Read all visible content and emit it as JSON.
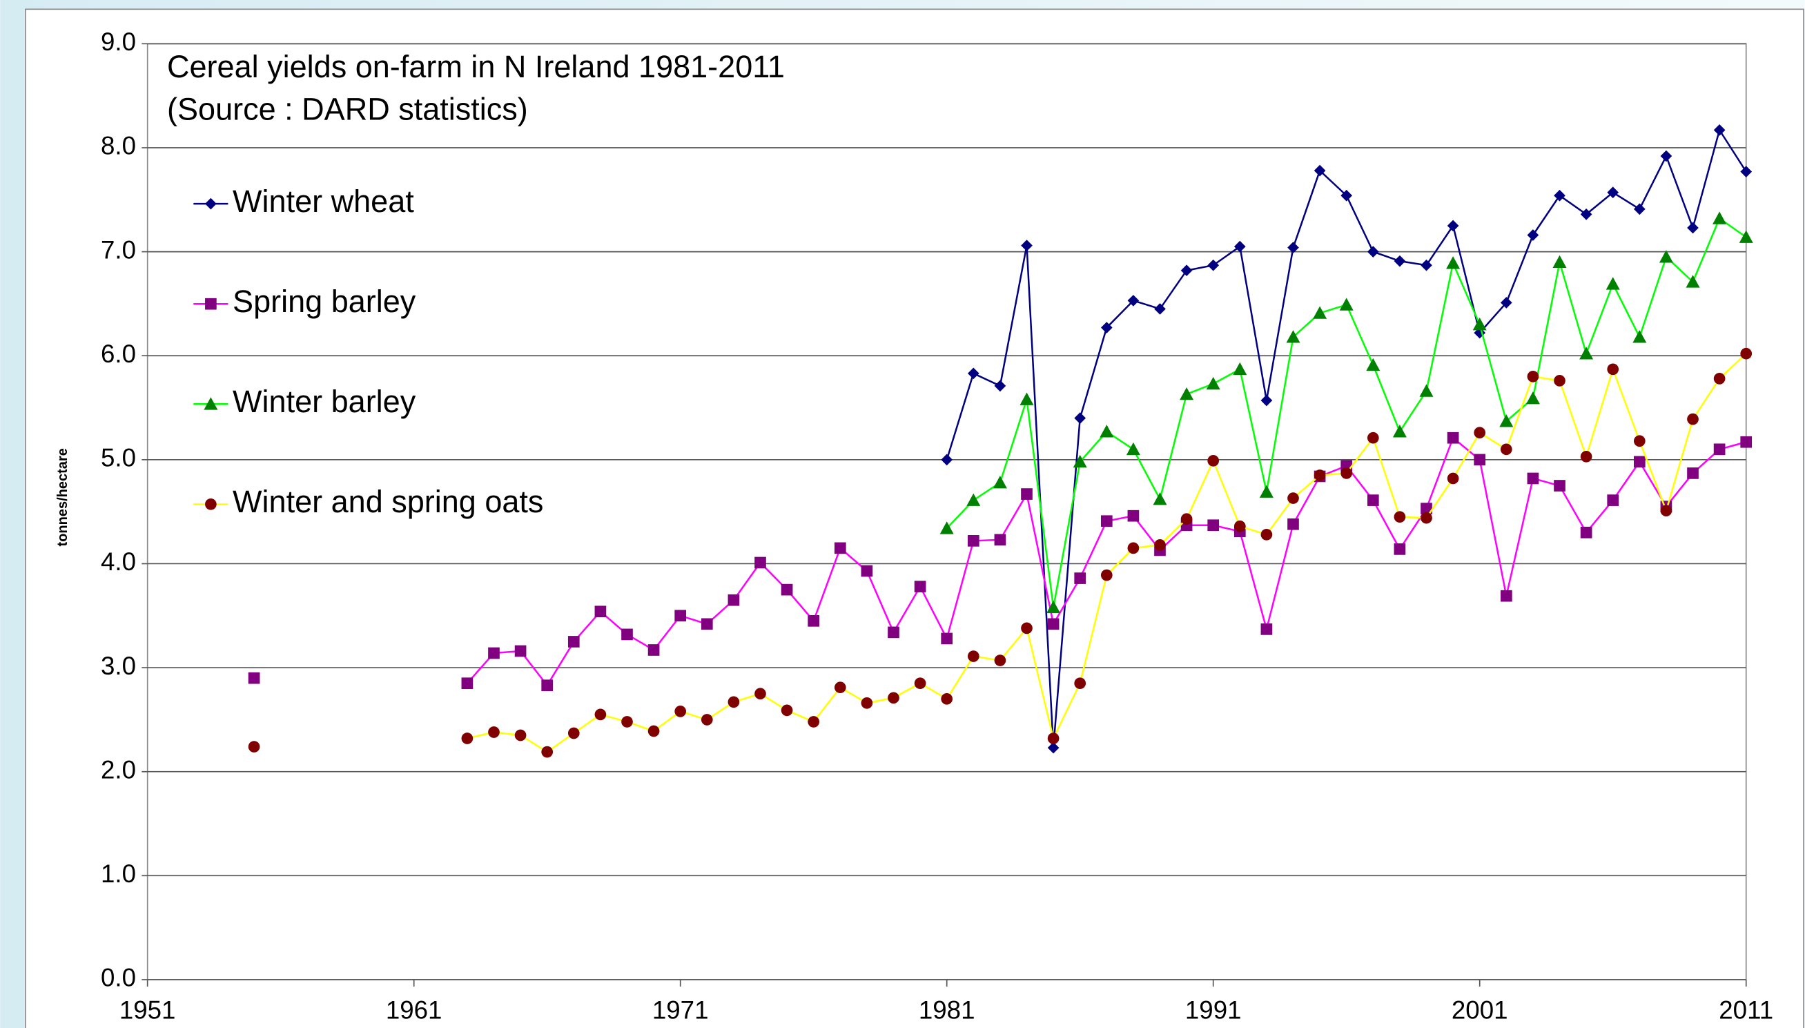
{
  "chart_data": {
    "type": "line",
    "title": "Cereal yields on-farm in N Ireland 1981-2011",
    "subtitle": "(Source : DARD statistics)",
    "y_label": "tonnes/hectare",
    "x": [
      1955,
      1956,
      1957,
      1958,
      1959,
      1960,
      1961,
      1962,
      1963,
      1964,
      1965,
      1966,
      1967,
      1968,
      1969,
      1970,
      1971,
      1972,
      1973,
      1974,
      1975,
      1976,
      1977,
      1978,
      1979,
      1980,
      1981,
      1982,
      1983,
      1984,
      1985,
      1986,
      1987,
      1988,
      1989,
      1990,
      1991,
      1992,
      1993,
      1994,
      1995,
      1996,
      1997,
      1998,
      1999,
      2000,
      2001,
      2002,
      2003,
      2004,
      2005,
      2006,
      2007,
      2008,
      2009,
      2010,
      2011
    ],
    "series": [
      {
        "name": "Winter wheat",
        "color": "#000080",
        "marker": "diamond",
        "marker_color": "#000080",
        "values": [
          null,
          null,
          null,
          null,
          null,
          null,
          null,
          null,
          null,
          null,
          null,
          null,
          null,
          null,
          null,
          null,
          null,
          null,
          null,
          null,
          null,
          null,
          null,
          null,
          null,
          null,
          5.0,
          5.83,
          5.71,
          7.06,
          2.23,
          5.4,
          6.27,
          6.53,
          6.45,
          6.82,
          6.87,
          7.05,
          5.57,
          7.04,
          7.78,
          7.54,
          7.0,
          6.91,
          6.87,
          7.25,
          6.22,
          6.51,
          7.16,
          7.54,
          7.36,
          7.57,
          7.41,
          7.92,
          7.23,
          8.17,
          7.77
        ]
      },
      {
        "name": "Spring barley",
        "color": "#ff00ff",
        "marker": "square",
        "marker_color": "#800080",
        "values": [
          2.9,
          null,
          null,
          null,
          null,
          null,
          null,
          null,
          2.85,
          3.14,
          3.16,
          2.83,
          3.25,
          3.54,
          3.32,
          3.17,
          3.5,
          3.42,
          3.65,
          4.01,
          3.75,
          3.45,
          4.15,
          3.93,
          3.34,
          3.78,
          3.28,
          4.22,
          4.23,
          4.67,
          3.42,
          3.86,
          4.41,
          4.46,
          4.13,
          4.37,
          4.37,
          4.31,
          3.37,
          4.38,
          4.84,
          4.94,
          4.61,
          4.14,
          4.53,
          5.21,
          5.0,
          3.69,
          4.82,
          4.75,
          4.3,
          4.61,
          4.98,
          4.55,
          4.87,
          5.1,
          5.17
        ]
      },
      {
        "name": "Winter barley",
        "color": "#00ff00",
        "marker": "triangle",
        "marker_color": "#008000",
        "values": [
          null,
          null,
          null,
          null,
          null,
          null,
          null,
          null,
          null,
          null,
          null,
          null,
          null,
          null,
          null,
          null,
          null,
          null,
          null,
          null,
          null,
          null,
          null,
          null,
          null,
          null,
          4.34,
          4.61,
          4.78,
          5.58,
          3.58,
          4.98,
          5.27,
          5.1,
          4.62,
          5.63,
          5.73,
          5.87,
          4.69,
          6.18,
          6.41,
          6.49,
          5.91,
          5.27,
          5.66,
          6.89,
          6.3,
          5.37,
          5.59,
          6.9,
          6.02,
          6.69,
          6.18,
          6.95,
          6.71,
          7.32,
          7.14
        ]
      },
      {
        "name": "Winter and spring oats",
        "color": "#ffff00",
        "marker": "circle",
        "marker_color": "#800000",
        "values": [
          2.24,
          null,
          null,
          null,
          null,
          null,
          null,
          null,
          2.32,
          2.38,
          2.35,
          2.19,
          2.37,
          2.55,
          2.48,
          2.39,
          2.58,
          2.5,
          2.67,
          2.75,
          2.59,
          2.48,
          2.81,
          2.66,
          2.71,
          2.85,
          2.7,
          3.11,
          3.07,
          3.38,
          2.32,
          2.85,
          3.89,
          4.15,
          4.18,
          4.43,
          4.99,
          4.36,
          4.28,
          4.63,
          4.85,
          4.87,
          5.21,
          4.45,
          4.44,
          4.82,
          5.26,
          5.1,
          5.8,
          5.76,
          5.03,
          5.87,
          5.18,
          4.51,
          5.39,
          5.78,
          6.02
        ]
      }
    ],
    "xlim": [
      1951,
      2011
    ],
    "xticks": [
      1951,
      1961,
      1971,
      1981,
      1991,
      2001,
      2011
    ],
    "ylim": [
      0,
      9
    ],
    "yticks": [
      {
        "value": 0,
        "label": "0.0"
      },
      {
        "value": 1,
        "label": "1.0"
      },
      {
        "value": 2,
        "label": "2.0"
      },
      {
        "value": 3,
        "label": "3.0"
      },
      {
        "value": 4,
        "label": "4.0"
      },
      {
        "value": 5,
        "label": "5.0"
      },
      {
        "value": 6,
        "label": "6.0"
      },
      {
        "value": 7,
        "label": "7.0"
      },
      {
        "value": 8,
        "label": "8.0"
      },
      {
        "value": 9,
        "label": "9.0"
      }
    ],
    "grid": true,
    "legend": "upper left"
  }
}
